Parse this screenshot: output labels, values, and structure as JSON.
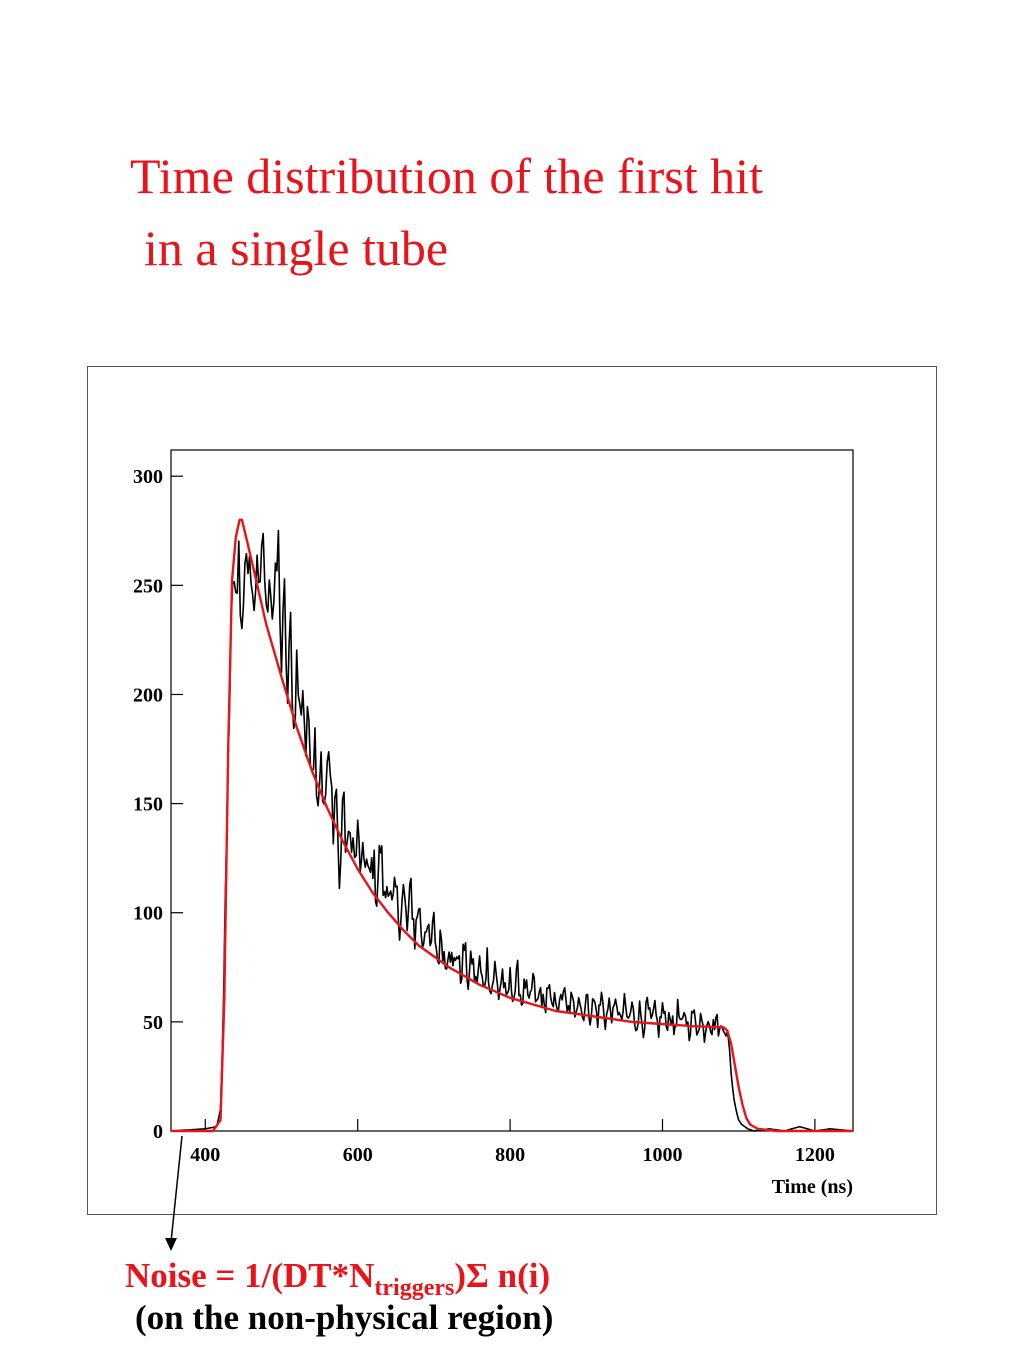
{
  "title": {
    "line1": "Time distribution of the first hit",
    "line2": "in a single tube"
  },
  "annotation": {
    "formula_prefix": "Noise = 1/(DT*N",
    "formula_subscript": "triggers",
    "formula_suffix": ")Σ n(i)",
    "note": "(on the non-physical region)"
  },
  "colors": {
    "title": "#e8141b",
    "histogram": "#000000",
    "fit": "#e8141b",
    "formula": "#e8141b",
    "note": "#000000"
  },
  "chart_data": {
    "type": "line",
    "title": "",
    "xlabel": "Time (ns)",
    "ylabel": "",
    "xlim": [
      355,
      1250
    ],
    "ylim": [
      0,
      312
    ],
    "xticks": [
      400,
      600,
      800,
      1000,
      1200
    ],
    "yticks": [
      0,
      50,
      100,
      150,
      200,
      250,
      300
    ],
    "grid": false,
    "legend": "none",
    "series": [
      {
        "name": "",
        "style": "histogram",
        "color": "#000000",
        "x": [
          355,
          400,
          415,
          420,
          424,
          428,
          432,
          436,
          440,
          444,
          448,
          452,
          456,
          460,
          464,
          468,
          472,
          476,
          480,
          484,
          488,
          492,
          496,
          500,
          504,
          508,
          512,
          516,
          520,
          524,
          528,
          532,
          536,
          540,
          544,
          548,
          552,
          556,
          560,
          564,
          568,
          572,
          576,
          580,
          584,
          588,
          592,
          596,
          600,
          605,
          610,
          615,
          620,
          625,
          630,
          635,
          640,
          645,
          650,
          655,
          660,
          665,
          670,
          675,
          680,
          685,
          690,
          695,
          700,
          705,
          710,
          715,
          720,
          725,
          730,
          735,
          740,
          745,
          750,
          755,
          760,
          765,
          770,
          775,
          780,
          785,
          790,
          795,
          800,
          805,
          810,
          815,
          820,
          825,
          830,
          835,
          840,
          845,
          850,
          855,
          860,
          865,
          870,
          875,
          880,
          885,
          890,
          895,
          900,
          905,
          910,
          915,
          920,
          925,
          930,
          935,
          940,
          945,
          950,
          955,
          960,
          965,
          970,
          975,
          980,
          985,
          990,
          995,
          1000,
          1005,
          1010,
          1015,
          1020,
          1025,
          1030,
          1035,
          1040,
          1045,
          1050,
          1055,
          1060,
          1065,
          1070,
          1075,
          1080,
          1085,
          1088,
          1092,
          1096,
          1100,
          1104,
          1108,
          1112,
          1120,
          1140,
          1160,
          1180,
          1200,
          1220,
          1250
        ],
        "y": [
          0,
          1,
          2,
          10,
          60,
          130,
          205,
          245,
          240,
          262,
          228,
          268,
          245,
          262,
          232,
          270,
          240,
          276,
          232,
          262,
          238,
          247,
          268,
          212,
          244,
          195,
          232,
          182,
          215,
          190,
          205,
          174,
          190,
          172,
          180,
          155,
          176,
          142,
          168,
          160,
          144,
          158,
          108,
          152,
          135,
          128,
          140,
          122,
          135,
          118,
          128,
          113,
          125,
          108,
          132,
          104,
          118,
          100,
          110,
          96,
          110,
          92,
          112,
          88,
          105,
          86,
          98,
          82,
          95,
          78,
          90,
          76,
          88,
          73,
          84,
          70,
          85,
          68,
          80,
          67,
          77,
          64,
          80,
          63,
          75,
          62,
          73,
          58,
          70,
          62,
          72,
          59,
          68,
          56,
          70,
          57,
          65,
          55,
          68,
          54,
          62,
          56,
          66,
          53,
          60,
          55,
          64,
          52,
          61,
          53,
          60,
          51,
          62,
          50,
          58,
          52,
          60,
          49,
          58,
          50,
          57,
          48,
          56,
          47,
          58,
          49,
          55,
          46,
          57,
          48,
          55,
          45,
          56,
          47,
          54,
          45,
          55,
          46,
          53,
          44,
          54,
          46,
          52,
          45,
          50,
          44,
          36,
          20,
          10,
          5,
          3,
          2,
          1,
          0,
          1,
          0,
          2,
          0,
          1,
          0
        ]
      },
      {
        "name": "",
        "style": "fit",
        "color": "#e8141b",
        "x": [
          355,
          410,
          420,
          425,
          430,
          435,
          440,
          445,
          448,
          455,
          465,
          480,
          500,
          520,
          540,
          560,
          580,
          600,
          620,
          640,
          660,
          680,
          700,
          720,
          740,
          760,
          780,
          800,
          820,
          840,
          860,
          880,
          900,
          920,
          940,
          960,
          980,
          1000,
          1020,
          1040,
          1060,
          1080,
          1085,
          1090,
          1095,
          1100,
          1105,
          1110,
          1115,
          1125,
          1150,
          1250
        ],
        "y": [
          0,
          0,
          5,
          60,
          175,
          252,
          272,
          280,
          280,
          270,
          255,
          232,
          208,
          185,
          165,
          148,
          133,
          120,
          109,
          100,
          92,
          85,
          80,
          75,
          71,
          67,
          64,
          61,
          59,
          57,
          55,
          54,
          53,
          52,
          51,
          50,
          49.5,
          49,
          48.5,
          48,
          47.8,
          47.5,
          46,
          40,
          30,
          20,
          12,
          6,
          3,
          1,
          0,
          0
        ]
      }
    ]
  }
}
